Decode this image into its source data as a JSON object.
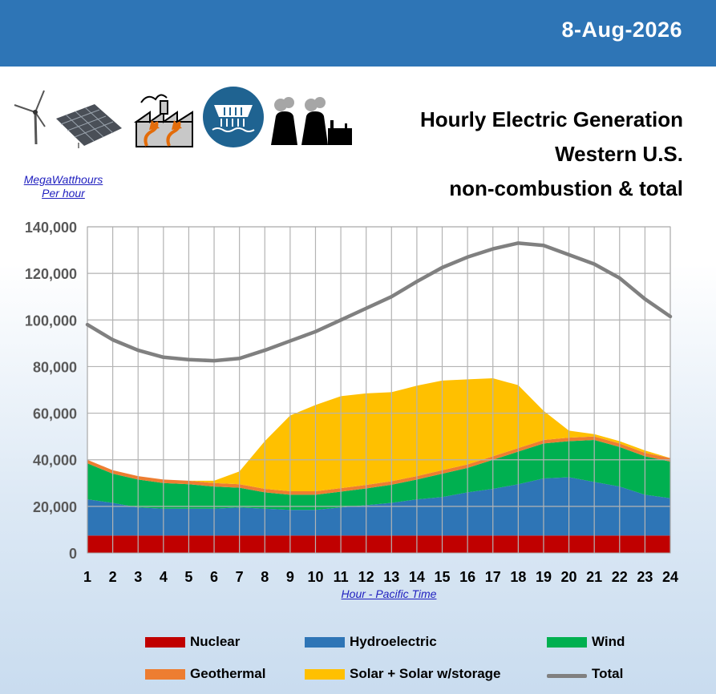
{
  "header": {
    "date": "8-Aug-2026"
  },
  "title": {
    "line1": "Hourly Electric Generation",
    "line2": "Western U.S.",
    "line3": "non-combustion & total"
  },
  "unit_label": {
    "line1": "MegaWatthours",
    "line2": "Per hour"
  },
  "icons": [
    "wind-turbine-icon",
    "solar-panel-icon",
    "geothermal-plant-icon",
    "hydroelectric-dam-icon",
    "nuclear-plant-icon"
  ],
  "colors": {
    "nuclear": "#c00000",
    "hydro": "#2e75b6",
    "wind": "#00b050",
    "geothermal": "#ed7d31",
    "solar": "#ffc000",
    "total": "#808080",
    "header": "#2e75b6"
  },
  "legend": {
    "nuclear": "Nuclear",
    "hydro": "Hydroelectric",
    "wind": "Wind",
    "geothermal": "Geothermal",
    "solar": "Solar + Solar w/storage",
    "total": "Total"
  },
  "chart_data": {
    "type": "area",
    "stacked": true,
    "x": [
      1,
      2,
      3,
      4,
      5,
      6,
      7,
      8,
      9,
      10,
      11,
      12,
      13,
      14,
      15,
      16,
      17,
      18,
      19,
      20,
      21,
      22,
      23,
      24
    ],
    "xlabel": "Hour - Pacific Time",
    "ylabel": "MegaWatthours Per hour",
    "ylim": [
      0,
      140000
    ],
    "yticks": [
      0,
      20000,
      40000,
      60000,
      80000,
      100000,
      120000,
      140000
    ],
    "ytick_labels": [
      "0",
      "20,000",
      "40,000",
      "60,000",
      "80,000",
      "100,000",
      "120,000",
      "140,000"
    ],
    "grid": true,
    "legend_position": "bottom",
    "series": [
      {
        "name": "Nuclear",
        "key": "nuclear",
        "values": [
          7500,
          7500,
          7500,
          7500,
          7500,
          7500,
          7500,
          7500,
          7500,
          7500,
          7500,
          7500,
          7500,
          7500,
          7500,
          7500,
          7500,
          7500,
          7500,
          7500,
          7500,
          7500,
          7500,
          7500
        ]
      },
      {
        "name": "Hydroelectric",
        "key": "hydro",
        "values": [
          15500,
          14000,
          12000,
          11500,
          11500,
          11500,
          12000,
          11500,
          11000,
          11000,
          12000,
          13000,
          14000,
          15500,
          16500,
          18500,
          20000,
          22000,
          24500,
          25000,
          23000,
          21000,
          17500,
          16000
        ]
      },
      {
        "name": "Wind",
        "key": "wind",
        "values": [
          15500,
          12500,
          12000,
          11000,
          10500,
          9500,
          8500,
          7000,
          6500,
          6500,
          6800,
          7200,
          7800,
          8500,
          10000,
          10500,
          12500,
          14000,
          15000,
          15500,
          18000,
          17000,
          16500,
          15700
        ]
      },
      {
        "name": "Geothermal",
        "key": "geothermal",
        "values": [
          1500,
          1500,
          1500,
          1500,
          1500,
          1500,
          1500,
          1500,
          1500,
          1500,
          1500,
          1500,
          1500,
          1500,
          1500,
          1500,
          1500,
          1500,
          1500,
          1500,
          1500,
          1500,
          1500,
          1500
        ]
      },
      {
        "name": "Solar + Solar w/storage",
        "key": "solar",
        "values": [
          0,
          0,
          0,
          0,
          0,
          1000,
          5500,
          20500,
          32500,
          37000,
          39500,
          39300,
          38200,
          38800,
          38500,
          36500,
          33500,
          27000,
          12500,
          3000,
          1000,
          1000,
          1000,
          0
        ]
      }
    ],
    "total": {
      "name": "Total",
      "key": "total",
      "values": [
        98000,
        91500,
        87000,
        84000,
        83000,
        82500,
        83500,
        87000,
        91000,
        95000,
        100000,
        105000,
        110000,
        116500,
        122500,
        127000,
        130500,
        133000,
        132000,
        128000,
        124000,
        118000,
        109000,
        101500
      ]
    }
  }
}
